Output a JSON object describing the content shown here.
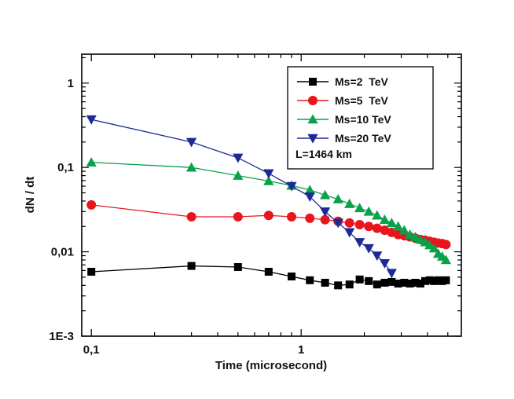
{
  "chart_data": {
    "type": "line",
    "xlabel": "Time (microsecond)",
    "ylabel": "dN / dt",
    "x_scale": "log",
    "y_scale": "log",
    "xlim": [
      0.09,
      5.8
    ],
    "ylim": [
      0.001,
      2.2
    ],
    "x_ticks": [
      {
        "value": 0.1,
        "label": "0,1"
      },
      {
        "value": 1,
        "label": "1"
      }
    ],
    "y_ticks": [
      {
        "value": 0.001,
        "label": "1E-3"
      },
      {
        "value": 0.01,
        "label": "0,01"
      },
      {
        "value": 0.1,
        "label": "0,1"
      },
      {
        "value": 1,
        "label": "1"
      }
    ],
    "legend_position": "top-right",
    "annotation": "L=1464 km",
    "series": [
      {
        "name": "Ms=2  TeV",
        "color": "#000000",
        "marker": "square",
        "points": [
          [
            0.1,
            0.0058
          ],
          [
            0.3,
            0.0068
          ],
          [
            0.5,
            0.0066
          ],
          [
            0.7,
            0.0058
          ],
          [
            0.9,
            0.0051
          ],
          [
            1.1,
            0.0046
          ],
          [
            1.3,
            0.0043
          ],
          [
            1.5,
            0.004
          ],
          [
            1.7,
            0.0041
          ],
          [
            1.9,
            0.0047
          ],
          [
            2.1,
            0.0045
          ],
          [
            2.3,
            0.0041
          ],
          [
            2.5,
            0.0043
          ],
          [
            2.7,
            0.0044
          ],
          [
            2.9,
            0.0042
          ],
          [
            3.1,
            0.0043
          ],
          [
            3.3,
            0.0042
          ],
          [
            3.5,
            0.0043
          ],
          [
            3.7,
            0.0042
          ],
          [
            3.9,
            0.0045
          ],
          [
            4.1,
            0.0046
          ],
          [
            4.3,
            0.0045
          ],
          [
            4.5,
            0.0046
          ],
          [
            4.7,
            0.0045
          ],
          [
            4.9,
            0.0046
          ]
        ]
      },
      {
        "name": "Ms=5  TeV",
        "color": "#e8161c",
        "marker": "circle",
        "points": [
          [
            0.1,
            0.036
          ],
          [
            0.3,
            0.026
          ],
          [
            0.5,
            0.026
          ],
          [
            0.7,
            0.027
          ],
          [
            0.9,
            0.026
          ],
          [
            1.1,
            0.025
          ],
          [
            1.3,
            0.024
          ],
          [
            1.5,
            0.023
          ],
          [
            1.7,
            0.022
          ],
          [
            1.9,
            0.021
          ],
          [
            2.1,
            0.02
          ],
          [
            2.3,
            0.019
          ],
          [
            2.5,
            0.018
          ],
          [
            2.7,
            0.017
          ],
          [
            2.9,
            0.016
          ],
          [
            3.1,
            0.0155
          ],
          [
            3.3,
            0.015
          ],
          [
            3.5,
            0.0145
          ],
          [
            3.7,
            0.014
          ],
          [
            3.9,
            0.0137
          ],
          [
            4.1,
            0.0133
          ],
          [
            4.3,
            0.013
          ],
          [
            4.5,
            0.0127
          ],
          [
            4.7,
            0.0125
          ],
          [
            4.9,
            0.0122
          ]
        ]
      },
      {
        "name": "Ms=10 TeV",
        "color": "#0aa14b",
        "marker": "triangle-up",
        "points": [
          [
            0.1,
            0.115
          ],
          [
            0.3,
            0.1
          ],
          [
            0.5,
            0.08
          ],
          [
            0.7,
            0.069
          ],
          [
            0.9,
            0.061
          ],
          [
            1.1,
            0.054
          ],
          [
            1.3,
            0.047
          ],
          [
            1.5,
            0.042
          ],
          [
            1.7,
            0.037
          ],
          [
            1.9,
            0.033
          ],
          [
            2.1,
            0.03
          ],
          [
            2.3,
            0.027
          ],
          [
            2.5,
            0.024
          ],
          [
            2.7,
            0.022
          ],
          [
            2.9,
            0.02
          ],
          [
            3.1,
            0.018
          ],
          [
            3.3,
            0.016
          ],
          [
            3.5,
            0.015
          ],
          [
            3.7,
            0.014
          ],
          [
            3.9,
            0.013
          ],
          [
            4.1,
            0.012
          ],
          [
            4.3,
            0.011
          ],
          [
            4.5,
            0.0095
          ],
          [
            4.7,
            0.0088
          ],
          [
            4.9,
            0.008
          ]
        ]
      },
      {
        "name": "Ms=20 TeV",
        "color": "#1c2a94",
        "marker": "triangle-down",
        "points": [
          [
            0.1,
            0.37
          ],
          [
            0.3,
            0.2
          ],
          [
            0.5,
            0.13
          ],
          [
            0.7,
            0.085
          ],
          [
            0.9,
            0.06
          ],
          [
            1.1,
            0.045
          ],
          [
            1.3,
            0.03
          ],
          [
            1.5,
            0.022
          ],
          [
            1.7,
            0.017
          ],
          [
            1.9,
            0.013
          ],
          [
            2.1,
            0.011
          ],
          [
            2.3,
            0.009
          ],
          [
            2.5,
            0.0073
          ],
          [
            2.7,
            0.0056
          ]
        ]
      }
    ]
  }
}
